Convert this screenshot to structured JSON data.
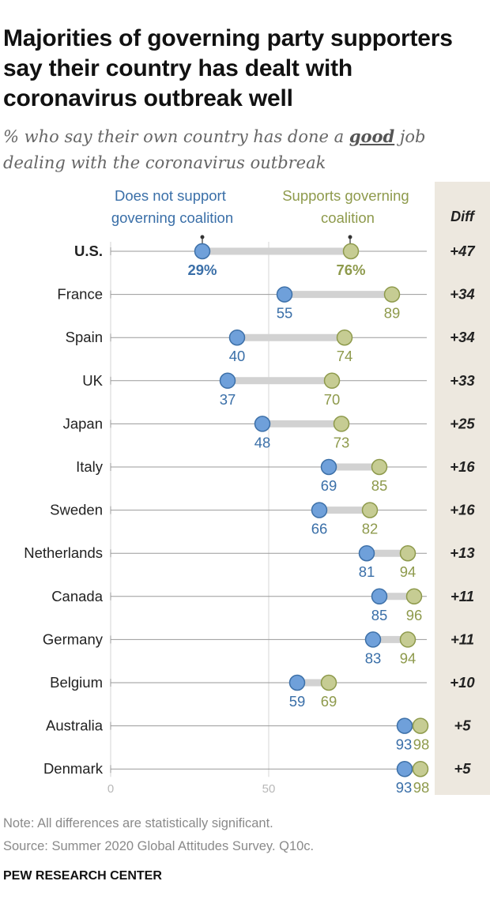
{
  "title": "Majorities of governing party supporters say their country has dealt with coronavirus outbreak well",
  "subtitle": {
    "prefix": "% who say their own country has done a",
    "emphasis": "good",
    "suffix": "job dealing with the coronavirus outbreak"
  },
  "legend": {
    "non_supporters": [
      "Does not support",
      "governing coalition"
    ],
    "supporters": [
      "Supports governing",
      "coalition"
    ]
  },
  "diff_header": "Diff",
  "colors": {
    "non_supporters": "#6fa0da",
    "non_supporters_stroke": "#3d70a8",
    "non_supporters_text": "#3a6fa8",
    "supporters": "#c6cc93",
    "supporters_stroke": "#8e9a4c",
    "supporters_text": "#8e9a4c",
    "connector": "#d2d2d2",
    "diff_panel": "#ede8df"
  },
  "chart_data": {
    "type": "dot-plot",
    "title": "Majorities of governing party supporters say their country has dealt with coronavirus outbreak well",
    "xlim": [
      0,
      100
    ],
    "x_ticks": [
      0,
      50
    ],
    "series": [
      {
        "name": "Does not support governing coalition"
      },
      {
        "name": "Supports governing coalition"
      }
    ],
    "rows": [
      {
        "country": "U.S.",
        "non_supporters": 29,
        "supporters": 76,
        "non_label": "29%",
        "sup_label": "76%",
        "diff": "+47",
        "highlight": true
      },
      {
        "country": "France",
        "non_supporters": 55,
        "supporters": 89,
        "non_label": "55",
        "sup_label": "89",
        "diff": "+34"
      },
      {
        "country": "Spain",
        "non_supporters": 40,
        "supporters": 74,
        "non_label": "40",
        "sup_label": "74",
        "diff": "+34"
      },
      {
        "country": "UK",
        "non_supporters": 37,
        "supporters": 70,
        "non_label": "37",
        "sup_label": "70",
        "diff": "+33"
      },
      {
        "country": "Japan",
        "non_supporters": 48,
        "supporters": 73,
        "non_label": "48",
        "sup_label": "73",
        "diff": "+25"
      },
      {
        "country": "Italy",
        "non_supporters": 69,
        "supporters": 85,
        "non_label": "69",
        "sup_label": "85",
        "diff": "+16"
      },
      {
        "country": "Sweden",
        "non_supporters": 66,
        "supporters": 82,
        "non_label": "66",
        "sup_label": "82",
        "diff": "+16"
      },
      {
        "country": "Netherlands",
        "non_supporters": 81,
        "supporters": 94,
        "non_label": "81",
        "sup_label": "94",
        "diff": "+13"
      },
      {
        "country": "Canada",
        "non_supporters": 85,
        "supporters": 96,
        "non_label": "85",
        "sup_label": "96",
        "diff": "+11"
      },
      {
        "country": "Germany",
        "non_supporters": 83,
        "supporters": 94,
        "non_label": "83",
        "sup_label": "94",
        "diff": "+11"
      },
      {
        "country": "Belgium",
        "non_supporters": 59,
        "supporters": 69,
        "non_label": "59",
        "sup_label": "69",
        "diff": "+10"
      },
      {
        "country": "Australia",
        "non_supporters": 93,
        "supporters": 98,
        "non_label": "93",
        "sup_label": "98",
        "diff": "+5"
      },
      {
        "country": "Denmark",
        "non_supporters": 93,
        "supporters": 98,
        "non_label": "93",
        "sup_label": "98",
        "diff": "+5"
      }
    ]
  },
  "note": "Note: All differences are statistically significant.",
  "source": "Source: Summer 2020 Global Attitudes Survey. Q10c.",
  "brand": "PEW RESEARCH CENTER"
}
